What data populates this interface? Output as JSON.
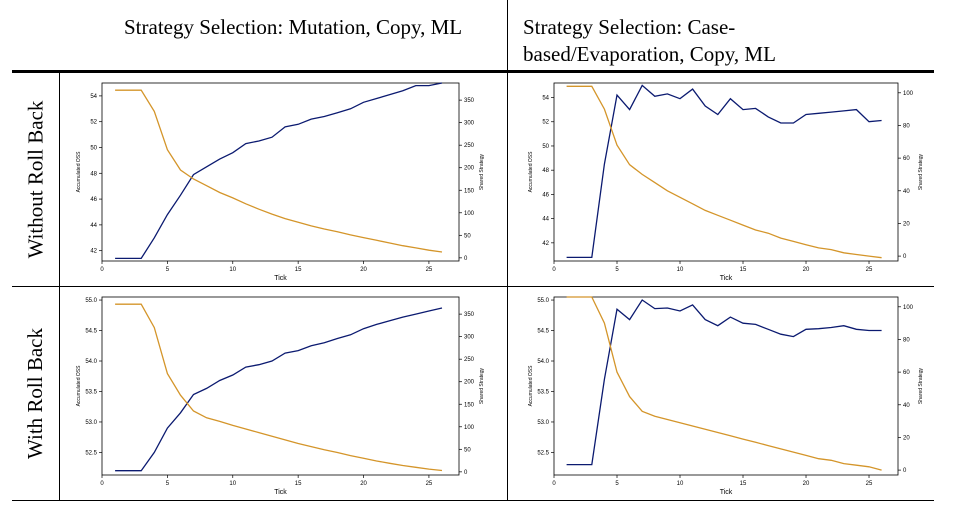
{
  "headers": {
    "col1": "Strategy Selection: Mutation, Copy, ML",
    "col2": "Strategy Selection: Case-based/Evaporation, Copy, ML",
    "row1": "Without Roll Back",
    "row2": "With Roll Back"
  },
  "colors": {
    "oss": "#0b1a70",
    "shared": "#d4952a"
  },
  "chart_data": [
    {
      "id": "c1",
      "type": "line",
      "xlabel": "Tick",
      "ylabel": "Accumulated OSS",
      "y2label": "Shared Strategy",
      "xlim": [
        0,
        27.3
      ],
      "ylim": [
        41.2,
        55.0
      ],
      "y2lim": [
        -7,
        388
      ],
      "xticks": [
        0,
        5,
        10,
        15,
        20,
        25
      ],
      "yticks": [
        42,
        44,
        46,
        48,
        50,
        52,
        54
      ],
      "y2ticks": [
        0,
        50,
        100,
        150,
        200,
        250,
        300,
        350
      ],
      "x": [
        1,
        2,
        3,
        4,
        5,
        6,
        7,
        8,
        9,
        10,
        11,
        12,
        13,
        14,
        15,
        16,
        17,
        18,
        19,
        20,
        21,
        22,
        23,
        24,
        25,
        26
      ],
      "series": [
        {
          "axis": "left",
          "color": "#0b1a70",
          "values": [
            41.4,
            41.4,
            41.4,
            43.0,
            44.8,
            46.3,
            47.9,
            48.5,
            49.1,
            49.6,
            50.3,
            50.5,
            50.8,
            51.6,
            51.8,
            52.2,
            52.4,
            52.7,
            53.0,
            53.5,
            53.8,
            54.1,
            54.4,
            54.8,
            54.8,
            55.0
          ]
        },
        {
          "axis": "right",
          "color": "#d4952a",
          "values": [
            372,
            372,
            372,
            325,
            240,
            195,
            175,
            160,
            145,
            133,
            120,
            108,
            97,
            87,
            79,
            71,
            64,
            58,
            51,
            45,
            39,
            33,
            27,
            22,
            17,
            13
          ]
        }
      ]
    },
    {
      "id": "c2",
      "type": "line",
      "xlabel": "Tick",
      "ylabel": "Accumulated OSS",
      "y2label": "Shared Strategy",
      "xlim": [
        0,
        27.3
      ],
      "ylim": [
        40.5,
        55.2
      ],
      "y2lim": [
        -3,
        106
      ],
      "xticks": [
        0,
        5,
        10,
        15,
        20,
        25
      ],
      "yticks": [
        42,
        44,
        46,
        48,
        50,
        52,
        54
      ],
      "y2ticks": [
        0,
        20,
        40,
        60,
        80,
        100
      ],
      "x": [
        1,
        2,
        3,
        4,
        5,
        6,
        7,
        8,
        9,
        10,
        11,
        12,
        13,
        14,
        15,
        16,
        17,
        18,
        19,
        20,
        21,
        22,
        23,
        24,
        25,
        26
      ],
      "series": [
        {
          "axis": "left",
          "color": "#0b1a70",
          "values": [
            40.8,
            40.8,
            40.8,
            48.5,
            54.2,
            53.0,
            55.0,
            54.1,
            54.3,
            53.9,
            54.7,
            53.3,
            52.6,
            53.9,
            53.0,
            53.1,
            52.4,
            51.9,
            51.9,
            52.6,
            52.7,
            52.8,
            52.9,
            53.0,
            52.0,
            52.1
          ]
        },
        {
          "axis": "right",
          "color": "#d4952a",
          "values": [
            104,
            104,
            104,
            90,
            68,
            56,
            50,
            45,
            40,
            36,
            32,
            28,
            25,
            22,
            19,
            16,
            14,
            11,
            9,
            7,
            5,
            4,
            2,
            1,
            0,
            -1
          ]
        }
      ]
    },
    {
      "id": "c3",
      "type": "line",
      "xlabel": "Tick",
      "ylabel": "Accumulated OSS",
      "y2label": "Shared Strategy",
      "xlim": [
        0,
        27.3
      ],
      "ylim": [
        52.13,
        55.05
      ],
      "y2lim": [
        -7,
        388
      ],
      "xticks": [
        0,
        5,
        10,
        15,
        20,
        25
      ],
      "yticks": [
        52.5,
        53.0,
        53.5,
        54.0,
        54.5,
        55.0
      ],
      "y2ticks": [
        0,
        50,
        100,
        150,
        200,
        250,
        300,
        350
      ],
      "x": [
        1,
        2,
        3,
        4,
        5,
        6,
        7,
        8,
        9,
        10,
        11,
        12,
        13,
        14,
        15,
        16,
        17,
        18,
        19,
        20,
        21,
        22,
        23,
        24,
        25,
        26
      ],
      "series": [
        {
          "axis": "left",
          "color": "#0b1a70",
          "values": [
            52.2,
            52.2,
            52.2,
            52.5,
            52.9,
            53.15,
            53.45,
            53.55,
            53.68,
            53.77,
            53.9,
            53.94,
            54.0,
            54.13,
            54.17,
            54.25,
            54.3,
            54.37,
            54.43,
            54.53,
            54.6,
            54.66,
            54.72,
            54.77,
            54.82,
            54.87
          ]
        },
        {
          "axis": "right",
          "color": "#d4952a",
          "values": [
            372,
            372,
            372,
            320,
            218,
            170,
            135,
            120,
            112,
            103,
            95,
            87,
            79,
            71,
            63,
            56,
            49,
            43,
            36,
            30,
            24,
            19,
            14,
            10,
            6,
            3
          ]
        }
      ]
    },
    {
      "id": "c4",
      "type": "line",
      "xlabel": "Tick",
      "ylabel": "Accumulated OSS",
      "y2label": "Shared Strategy",
      "xlim": [
        0,
        27.3
      ],
      "ylim": [
        52.13,
        55.05
      ],
      "y2lim": [
        -3,
        106
      ],
      "xticks": [
        0,
        5,
        10,
        15,
        20,
        25
      ],
      "yticks": [
        52.5,
        53.0,
        53.5,
        54.0,
        54.5,
        55.0
      ],
      "y2ticks": [
        0,
        20,
        40,
        60,
        80,
        100
      ],
      "x": [
        1,
        2,
        3,
        4,
        5,
        6,
        7,
        8,
        9,
        10,
        11,
        12,
        13,
        14,
        15,
        16,
        17,
        18,
        19,
        20,
        21,
        22,
        23,
        24,
        25,
        26
      ],
      "series": [
        {
          "axis": "left",
          "color": "#0b1a70",
          "values": [
            52.3,
            52.3,
            52.3,
            53.7,
            54.85,
            54.68,
            55.0,
            54.86,
            54.87,
            54.82,
            54.92,
            54.68,
            54.58,
            54.72,
            54.62,
            54.6,
            54.52,
            54.44,
            54.4,
            54.52,
            54.53,
            54.55,
            54.58,
            54.52,
            54.5,
            54.5
          ]
        },
        {
          "axis": "right",
          "color": "#d4952a",
          "values": [
            106,
            106,
            106,
            90,
            60,
            45,
            36,
            33,
            31,
            29,
            27,
            25,
            23,
            21,
            19,
            17,
            15,
            13,
            11,
            9,
            7,
            6,
            4,
            3,
            2,
            0
          ]
        }
      ]
    }
  ]
}
